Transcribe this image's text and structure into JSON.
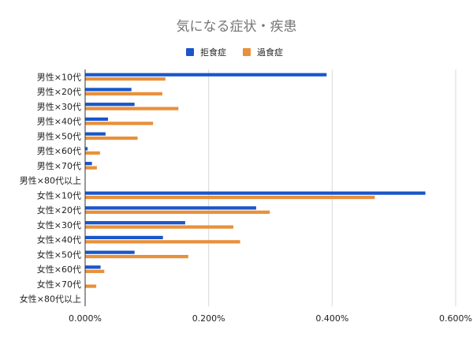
{
  "chart_data": {
    "type": "bar",
    "orientation": "horizontal",
    "title": "気になる症状・疾患",
    "legend_position": "top",
    "categories": [
      "男性×10代",
      "男性×20代",
      "男性×30代",
      "男性×40代",
      "男性×50代",
      "男性×60代",
      "男性×70代",
      "男性×80代以上",
      "女性×10代",
      "女性×20代",
      "女性×30代",
      "女性×40代",
      "女性×50代",
      "女性×60代",
      "女性×70代",
      "女性×80代以上"
    ],
    "series": [
      {
        "name": "拒食症",
        "color": "#1a56c9",
        "values": [
          0.00391,
          0.00075,
          0.0008,
          0.00037,
          0.00033,
          4e-05,
          0.00011,
          0,
          0.00551,
          0.00277,
          0.00162,
          0.00126,
          0.0008,
          0.00025,
          0,
          0
        ]
      },
      {
        "name": "過食症",
        "color": "#e8903a",
        "values": [
          0.0013,
          0.00125,
          0.00151,
          0.0011,
          0.00085,
          0.00024,
          0.00019,
          0,
          0.00469,
          0.00299,
          0.0024,
          0.00251,
          0.00167,
          0.00031,
          0.00018,
          0
        ]
      }
    ],
    "xlim": [
      0,
      0.006
    ],
    "x_ticks": [
      "0.000%",
      "0.200%",
      "0.400%",
      "0.600%"
    ],
    "grid": true
  }
}
